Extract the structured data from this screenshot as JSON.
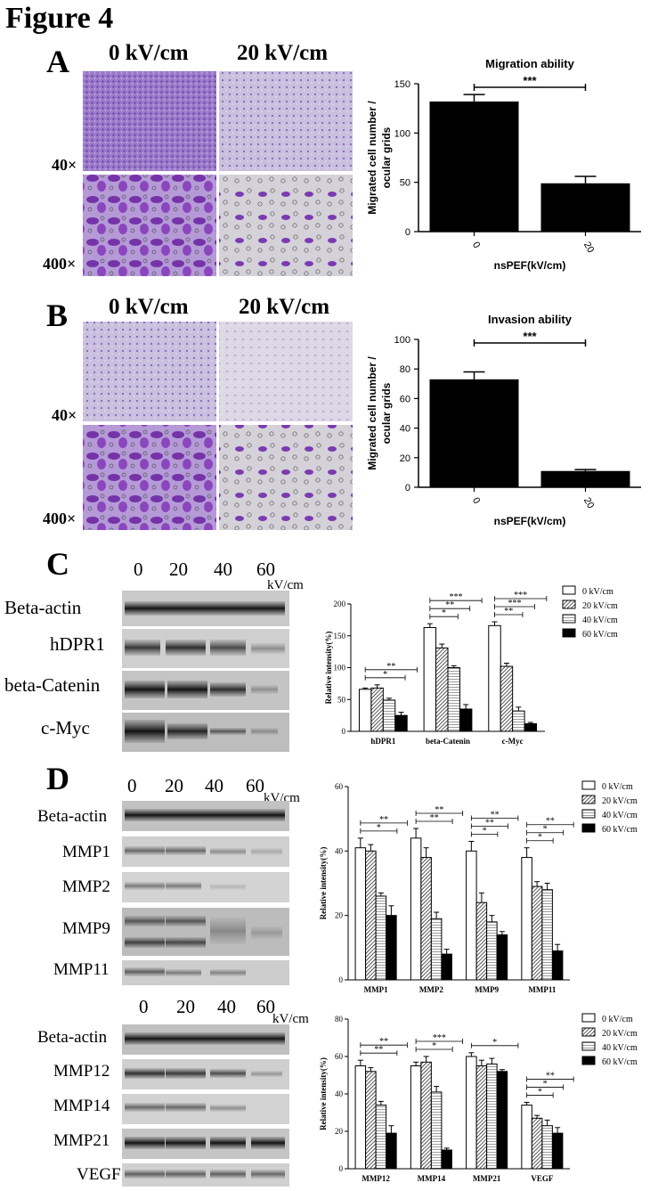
{
  "figure_title": "Figure 4",
  "panelA": {
    "letter": "A",
    "col_labels": [
      "0 kV/cm",
      "20 kV/cm"
    ],
    "row_labels": [
      "40×",
      "400×"
    ]
  },
  "panelB": {
    "letter": "B",
    "col_labels": [
      "0 kV/cm",
      "20 kV/cm"
    ],
    "row_labels": [
      "40×",
      "400×"
    ]
  },
  "panelC": {
    "letter": "C",
    "lanes": [
      "0",
      "20",
      "40",
      "60"
    ],
    "unit": "kV/cm",
    "proteins": [
      "Beta-actin",
      "hDPR1",
      "beta-Catenin",
      "c-Myc"
    ]
  },
  "panelD": {
    "letter": "D",
    "lanes": [
      "0",
      "20",
      "40",
      "60"
    ],
    "unit": "kV/cm",
    "proteins_top": [
      "Beta-actin",
      "MMP1",
      "MMP2",
      "MMP9",
      "MMP11"
    ],
    "proteins_bottom": [
      "Beta-actin",
      "MMP12",
      "MMP14",
      "MMP21",
      "VEGF"
    ]
  },
  "chart_data": [
    {
      "id": "migration",
      "type": "bar",
      "title": "Migration ability",
      "xlabel": "nsPEF(kV/cm)",
      "ylabel_lines": [
        "Migrated cell number /",
        "ocular grids"
      ],
      "categories": [
        "0",
        "20"
      ],
      "values": [
        132,
        49
      ],
      "errors": [
        7,
        7
      ],
      "ylim": [
        0,
        150
      ],
      "yticks": [
        0,
        50,
        100,
        150
      ],
      "significance": [
        {
          "from": 0,
          "to": 1,
          "label": "***"
        }
      ]
    },
    {
      "id": "invasion",
      "type": "bar",
      "title": "Invasion ability",
      "xlabel": "nsPEF(kV/cm)",
      "ylabel_lines": [
        "Migrated cell number /",
        "ocular grids"
      ],
      "categories": [
        "0",
        "20"
      ],
      "values": [
        73,
        11
      ],
      "errors": [
        5,
        1
      ],
      "ylim": [
        0,
        100
      ],
      "yticks": [
        0,
        20,
        40,
        60,
        80,
        100
      ],
      "significance": [
        {
          "from": 0,
          "to": 1,
          "label": "***"
        }
      ]
    },
    {
      "id": "wbC",
      "type": "bar",
      "ylabel": "Relative intensity(%)",
      "categories": [
        "hDPR1",
        "beta-Catenin",
        "c-Myc"
      ],
      "ylim": [
        0,
        200
      ],
      "yticks": [
        0,
        50,
        100,
        150,
        200
      ],
      "legend": "right",
      "series": [
        {
          "name": "0 kV/cm",
          "values": [
            66,
            163,
            166
          ],
          "errors": [
            2,
            6,
            6
          ]
        },
        {
          "name": "20 kV/cm",
          "values": [
            68,
            131,
            102
          ],
          "errors": [
            5,
            6,
            5
          ]
        },
        {
          "name": "40 kV/cm",
          "values": [
            49,
            100,
            32
          ],
          "errors": [
            3,
            3,
            6
          ]
        },
        {
          "name": "60 kV/cm",
          "values": [
            25,
            35,
            12
          ],
          "errors": [
            5,
            7,
            2
          ]
        }
      ],
      "significance": [
        {
          "group": 0,
          "to": 2,
          "label": "*"
        },
        {
          "group": 0,
          "to": 3,
          "label": "**"
        },
        {
          "group": 1,
          "to": 1,
          "label": "*"
        },
        {
          "group": 1,
          "to": 2,
          "label": "**"
        },
        {
          "group": 1,
          "to": 3,
          "label": "***"
        },
        {
          "group": 2,
          "to": 1,
          "label": "**"
        },
        {
          "group": 2,
          "to": 2,
          "label": "***"
        },
        {
          "group": 2,
          "to": 3,
          "label": "***"
        }
      ]
    },
    {
      "id": "wbD1",
      "type": "bar",
      "ylabel": "Relative intensity(%)",
      "categories": [
        "MMP1",
        "MMP2",
        "MMP9",
        "MMP11"
      ],
      "ylim": [
        0,
        60
      ],
      "yticks": [
        0,
        20,
        40,
        60
      ],
      "legend": "right",
      "series": [
        {
          "name": "0 kV/cm",
          "values": [
            41,
            44,
            40,
            38
          ],
          "errors": [
            3,
            3,
            3,
            3
          ]
        },
        {
          "name": "20 kV/cm",
          "values": [
            40,
            38,
            24,
            29
          ],
          "errors": [
            2,
            3,
            3,
            1.5
          ]
        },
        {
          "name": "40 kV/cm",
          "values": [
            26,
            19,
            18,
            28
          ],
          "errors": [
            1,
            2,
            2,
            2
          ]
        },
        {
          "name": "60 kV/cm",
          "values": [
            20,
            8,
            14,
            9
          ],
          "errors": [
            3,
            1.5,
            1,
            2
          ]
        }
      ],
      "significance": [
        {
          "group": 0,
          "to": 2,
          "label": "*"
        },
        {
          "group": 0,
          "to": 3,
          "label": "**"
        },
        {
          "group": 1,
          "to": 2,
          "label": "**"
        },
        {
          "group": 1,
          "to": 3,
          "label": "**"
        },
        {
          "group": 2,
          "to": 1,
          "label": "*"
        },
        {
          "group": 2,
          "to": 2,
          "label": "**"
        },
        {
          "group": 2,
          "to": 3,
          "label": "**"
        },
        {
          "group": 3,
          "to": 1,
          "label": "*"
        },
        {
          "group": 3,
          "to": 2,
          "label": "*"
        },
        {
          "group": 3,
          "to": 3,
          "label": "**"
        }
      ]
    },
    {
      "id": "wbD2",
      "type": "bar",
      "ylabel": "Relative intensity(%)",
      "categories": [
        "MMP12",
        "MMP14",
        "MMP21",
        "VEGF"
      ],
      "ylim": [
        0,
        80
      ],
      "yticks": [
        0,
        20,
        40,
        60,
        80
      ],
      "legend": "right",
      "series": [
        {
          "name": "0 kV/cm",
          "values": [
            55,
            55,
            60,
            34
          ],
          "errors": [
            3,
            2,
            2,
            1.5
          ]
        },
        {
          "name": "20 kV/cm",
          "values": [
            52,
            57,
            55,
            27
          ],
          "errors": [
            2,
            3,
            3,
            1.5
          ]
        },
        {
          "name": "40 kV/cm",
          "values": [
            34,
            41,
            56,
            23
          ],
          "errors": [
            2,
            3,
            3,
            3
          ]
        },
        {
          "name": "60 kV/cm",
          "values": [
            19,
            10,
            52,
            19
          ],
          "errors": [
            4,
            1,
            1,
            3
          ]
        }
      ],
      "significance": [
        {
          "group": 0,
          "to": 2,
          "label": "**"
        },
        {
          "group": 0,
          "to": 3,
          "label": "**"
        },
        {
          "group": 1,
          "to": 2,
          "label": "*"
        },
        {
          "group": 1,
          "to": 3,
          "label": "***"
        },
        {
          "group": 2,
          "to": 3,
          "label": "*"
        },
        {
          "group": 3,
          "to": 1,
          "label": "*"
        },
        {
          "group": 3,
          "to": 2,
          "label": "*"
        },
        {
          "group": 3,
          "to": 3,
          "label": "**"
        }
      ]
    }
  ]
}
